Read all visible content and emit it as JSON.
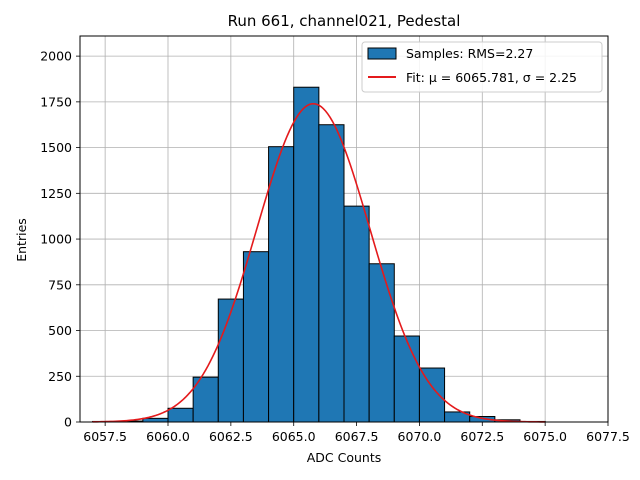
{
  "chart_data": {
    "type": "bar",
    "title": "Run 661, channel021, Pedestal",
    "xlabel": "ADC Counts",
    "ylabel": "Entries",
    "xlim": [
      6056.5,
      6077.5
    ],
    "ylim": [
      0,
      2110
    ],
    "xticks": [
      6057.5,
      6060.0,
      6062.5,
      6065.0,
      6067.5,
      6070.0,
      6072.5,
      6075.0,
      6077.5
    ],
    "yticks": [
      0,
      250,
      500,
      750,
      1000,
      1250,
      1500,
      1750,
      2000
    ],
    "grid": true,
    "legend_position": "top-right",
    "bin_edges": [
      6057,
      6058,
      6059,
      6060,
      6061,
      6062,
      6063,
      6064,
      6065,
      6066,
      6067,
      6068,
      6069,
      6070,
      6071,
      6072,
      6073,
      6074,
      6075,
      6076,
      6077
    ],
    "counts": [
      3,
      5,
      20,
      75,
      245,
      672,
      931,
      1505,
      1830,
      1625,
      1180,
      865,
      470,
      295,
      55,
      30,
      12,
      3,
      0,
      0
    ],
    "series": [
      {
        "name": "Samples: RMS=2.27",
        "kind": "histogram",
        "color": "#1f77b4",
        "edgecolor": "#000000"
      },
      {
        "name": "Fit: μ = 6065.781, σ = 2.25",
        "kind": "line",
        "color": "#e41a1c",
        "mu": 6065.781,
        "sigma": 2.25,
        "amplitude": 1740,
        "x_range": [
          6057,
          6075
        ]
      }
    ]
  }
}
